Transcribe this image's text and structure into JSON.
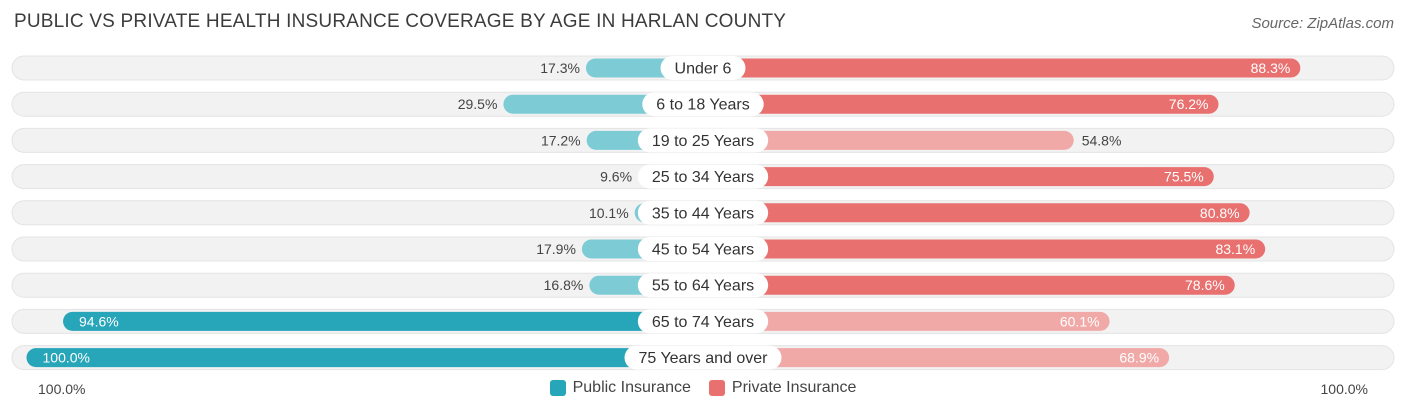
{
  "title": "PUBLIC VS PRIVATE HEALTH INSURANCE COVERAGE BY AGE IN HARLAN COUNTY",
  "source": "Source: ZipAtlas.com",
  "colors": {
    "public": "#3eb3c3",
    "public_strong": "#27a5b9",
    "private": "#ee8080",
    "private_strong": "#e8706f",
    "track": "#f2f2f2"
  },
  "chart_data": {
    "type": "bar",
    "orientation": "horizontal-diverging",
    "categories": [
      "Under 6",
      "6 to 18 Years",
      "19 to 25 Years",
      "25 to 34 Years",
      "35 to 44 Years",
      "45 to 54 Years",
      "55 to 64 Years",
      "65 to 74 Years",
      "75 Years and over"
    ],
    "series": [
      {
        "name": "Public Insurance",
        "values": [
          17.3,
          29.5,
          17.2,
          9.6,
          10.1,
          17.9,
          16.8,
          94.6,
          100.0
        ],
        "labels": [
          "17.3%",
          "29.5%",
          "17.2%",
          "9.6%",
          "10.1%",
          "17.9%",
          "16.8%",
          "94.6%",
          "100.0%"
        ]
      },
      {
        "name": "Private Insurance",
        "values": [
          88.3,
          76.2,
          54.8,
          75.5,
          80.8,
          83.1,
          78.6,
          60.1,
          68.9
        ],
        "labels": [
          "88.3%",
          "76.2%",
          "54.8%",
          "75.5%",
          "80.8%",
          "83.1%",
          "78.6%",
          "60.1%",
          "68.9%"
        ]
      }
    ],
    "axis_left_label": "100.0%",
    "axis_right_label": "100.0%",
    "xlim": [
      0,
      100
    ],
    "legend_position": "bottom-center"
  }
}
